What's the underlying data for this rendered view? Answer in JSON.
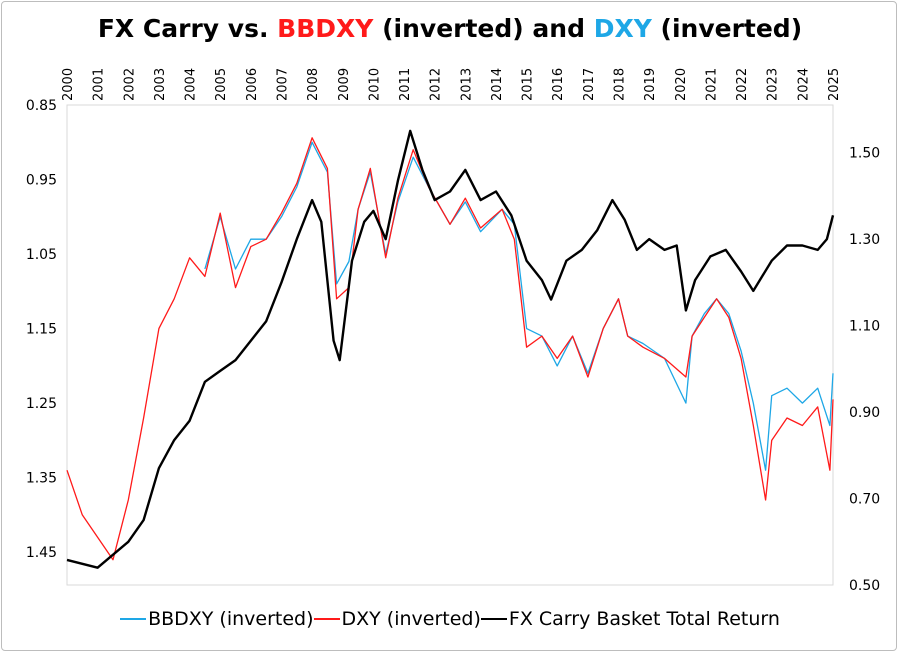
{
  "chart_data": {
    "type": "line",
    "title_parts": [
      "FX Carry vs. ",
      "BBDXY",
      " (inverted) and ",
      "DXY",
      " (inverted)"
    ],
    "x_ticks": [
      "2000",
      "2001",
      "2002",
      "2003",
      "2004",
      "2005",
      "2006",
      "2007",
      "2008",
      "2009",
      "2010",
      "2011",
      "2012",
      "2013",
      "2014",
      "2015",
      "2016",
      "2017",
      "2018",
      "2019",
      "2020",
      "2021",
      "2022",
      "2023",
      "2024",
      "2025"
    ],
    "xlim": [
      2000,
      2025
    ],
    "left_axis": {
      "ticks": [
        "0.85",
        "0.95",
        "1.05",
        "1.15",
        "1.25",
        "1.35",
        "1.45"
      ],
      "ylim": [
        0.85,
        1.494
      ],
      "inverted": true
    },
    "right_axis": {
      "ticks": [
        "0.50",
        "0.70",
        "0.90",
        "1.10",
        "1.30",
        "1.50"
      ],
      "ylim": [
        0.5,
        1.61
      ]
    },
    "legend_position": "bottom",
    "grid": false,
    "series": [
      {
        "name": "BBDXY (inverted)",
        "color": "#1ea7e6",
        "axis": "left",
        "x": [
          2004.5,
          2005,
          2005.5,
          2006,
          2006.5,
          2007,
          2007.5,
          2008,
          2008.5,
          2008.8,
          2009.2,
          2009.5,
          2009.9,
          2010.4,
          2010.8,
          2011.3,
          2011.8,
          2012.5,
          2013,
          2013.5,
          2014.2,
          2014.6,
          2015,
          2015.5,
          2016,
          2016.5,
          2017,
          2017.5,
          2018,
          2018.3,
          2018.8,
          2019.5,
          2020.2,
          2020.4,
          2020.8,
          2021.2,
          2021.6,
          2022,
          2022.4,
          2022.8,
          2023,
          2023.5,
          2024,
          2024.5,
          2024.9,
          2025
        ],
        "y": [
          1.07,
          1.0,
          1.07,
          1.03,
          1.03,
          1.0,
          0.96,
          0.9,
          0.94,
          1.09,
          1.06,
          0.99,
          0.94,
          1.05,
          0.98,
          0.92,
          0.96,
          1.01,
          0.98,
          1.02,
          0.99,
          1.01,
          1.15,
          1.16,
          1.2,
          1.16,
          1.21,
          1.15,
          1.11,
          1.16,
          1.17,
          1.19,
          1.25,
          1.16,
          1.13,
          1.11,
          1.13,
          1.18,
          1.25,
          1.34,
          1.24,
          1.23,
          1.25,
          1.23,
          1.28,
          1.21
        ]
      },
      {
        "name": "DXY (inverted)",
        "color": "#ff1a1a",
        "axis": "left",
        "x": [
          2000,
          2000.5,
          2001.5,
          2002,
          2002.5,
          2003,
          2003.5,
          2004,
          2004.5,
          2005,
          2005.5,
          2006,
          2006.5,
          2007,
          2007.5,
          2008,
          2008.5,
          2008.8,
          2009.2,
          2009.5,
          2009.9,
          2010.4,
          2010.8,
          2011.3,
          2011.8,
          2012.5,
          2013,
          2013.5,
          2014.2,
          2014.6,
          2015,
          2015.5,
          2016,
          2016.5,
          2017,
          2017.5,
          2018,
          2018.3,
          2018.8,
          2019.5,
          2020.2,
          2020.4,
          2020.8,
          2021.2,
          2021.6,
          2022,
          2022.4,
          2022.8,
          2023,
          2023.5,
          2024,
          2024.5,
          2024.9,
          2025
        ],
        "y": [
          1.34,
          1.4,
          1.46,
          1.38,
          1.27,
          1.15,
          1.11,
          1.055,
          1.08,
          0.995,
          1.095,
          1.04,
          1.03,
          0.995,
          0.955,
          0.894,
          0.935,
          1.11,
          1.095,
          0.99,
          0.935,
          1.055,
          0.975,
          0.91,
          0.96,
          1.01,
          0.975,
          1.015,
          0.99,
          1.03,
          1.175,
          1.16,
          1.19,
          1.16,
          1.215,
          1.15,
          1.11,
          1.16,
          1.175,
          1.19,
          1.215,
          1.16,
          1.135,
          1.11,
          1.135,
          1.19,
          1.28,
          1.38,
          1.3,
          1.27,
          1.28,
          1.255,
          1.34,
          1.245
        ]
      },
      {
        "name": "FX Carry Basket Total Return",
        "color": "#000000",
        "axis": "right",
        "x": [
          2000,
          2001,
          2002,
          2002.5,
          2003,
          2003.5,
          2004,
          2004.5,
          2005,
          2005.5,
          2006,
          2006.5,
          2007,
          2007.5,
          2008,
          2008.3,
          2008.7,
          2008.9,
          2009.3,
          2009.7,
          2010,
          2010.4,
          2010.8,
          2011.2,
          2011.6,
          2012,
          2012.5,
          2013,
          2013.5,
          2014,
          2014.5,
          2015,
          2015.5,
          2015.8,
          2016.3,
          2016.8,
          2017.3,
          2017.8,
          2018.2,
          2018.6,
          2019,
          2019.5,
          2019.9,
          2020.2,
          2020.5,
          2021,
          2021.5,
          2022,
          2022.4,
          2023,
          2023.5,
          2024,
          2024.5,
          2024.8,
          2025
        ],
        "y": [
          0.558,
          0.54,
          0.6,
          0.65,
          0.77,
          0.835,
          0.88,
          0.97,
          0.995,
          1.02,
          1.065,
          1.11,
          1.2,
          1.3,
          1.39,
          1.34,
          1.065,
          1.02,
          1.25,
          1.34,
          1.365,
          1.3,
          1.435,
          1.55,
          1.46,
          1.39,
          1.41,
          1.46,
          1.39,
          1.41,
          1.355,
          1.25,
          1.205,
          1.16,
          1.25,
          1.275,
          1.32,
          1.39,
          1.345,
          1.275,
          1.3,
          1.275,
          1.285,
          1.135,
          1.205,
          1.26,
          1.275,
          1.225,
          1.18,
          1.25,
          1.285,
          1.285,
          1.275,
          1.3,
          1.355
        ]
      }
    ]
  }
}
